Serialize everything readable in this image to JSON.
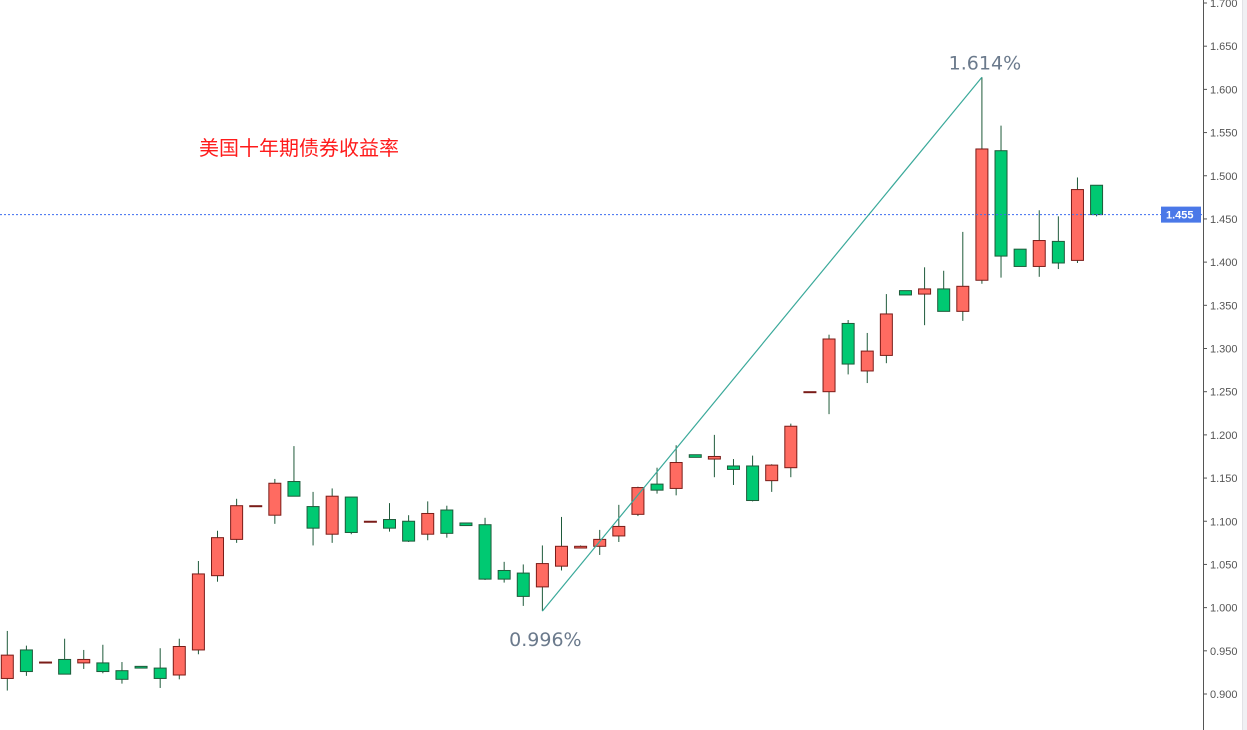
{
  "chart_data": {
    "type": "candlestick",
    "title": "美国十年期债券收益率",
    "title_color": "#ff1a1a",
    "ylim": [
      0.9,
      1.7
    ],
    "y_ticks": [
      "0.900",
      "0.950",
      "1.000",
      "1.050",
      "1.100",
      "1.150",
      "1.200",
      "1.250",
      "1.300",
      "1.350",
      "1.400",
      "1.450",
      "1.500",
      "1.550",
      "1.600",
      "1.650",
      "1.700"
    ],
    "y_axis_side": "right",
    "grid": false,
    "colors": {
      "up": "#ff6b61",
      "up_border": "#7a1c18",
      "down": "#00c972",
      "down_border": "#1e5a3a",
      "wick": "#1e5a3a",
      "trendline": "#3aa99a",
      "price_line": "#3d6cf0",
      "annotation": "#6b7a8c"
    },
    "current_price": {
      "label": "1.455",
      "value": 1.455
    },
    "trendline": {
      "from": {
        "index": 28,
        "value": 0.996
      },
      "to": {
        "index": 51,
        "value": 1.614
      }
    },
    "annotations": [
      {
        "text": "0.996%",
        "index": 28,
        "value": 0.996
      },
      {
        "text": "1.614%",
        "index": 51,
        "value": 1.614
      }
    ],
    "ohlc": [
      [
        0.918,
        0.973,
        0.904,
        0.945
      ],
      [
        0.951,
        0.956,
        0.921,
        0.926
      ],
      [
        0.937,
        0.937,
        0.937,
        0.937
      ],
      [
        0.94,
        0.964,
        0.923,
        0.923
      ],
      [
        0.936,
        0.951,
        0.929,
        0.94
      ],
      [
        0.936,
        0.957,
        0.924,
        0.926
      ],
      [
        0.927,
        0.937,
        0.912,
        0.917
      ],
      [
        0.932,
        0.932,
        0.93,
        0.93
      ],
      [
        0.93,
        0.953,
        0.907,
        0.918
      ],
      [
        0.922,
        0.964,
        0.917,
        0.955
      ],
      [
        0.951,
        1.054,
        0.946,
        1.039
      ],
      [
        1.037,
        1.089,
        1.03,
        1.081
      ],
      [
        1.079,
        1.126,
        1.075,
        1.118
      ],
      [
        1.118,
        1.118,
        1.118,
        1.118
      ],
      [
        1.107,
        1.149,
        1.097,
        1.144
      ],
      [
        1.146,
        1.187,
        1.129,
        1.129
      ],
      [
        1.117,
        1.134,
        1.072,
        1.092
      ],
      [
        1.085,
        1.138,
        1.075,
        1.129
      ],
      [
        1.128,
        1.128,
        1.085,
        1.087
      ],
      [
        1.1,
        1.1,
        1.1,
        1.1
      ],
      [
        1.102,
        1.121,
        1.088,
        1.092
      ],
      [
        1.1,
        1.107,
        1.076,
        1.077
      ],
      [
        1.085,
        1.123,
        1.078,
        1.109
      ],
      [
        1.113,
        1.118,
        1.081,
        1.086
      ],
      [
        1.098,
        1.098,
        1.095,
        1.095
      ],
      [
        1.096,
        1.104,
        1.032,
        1.033
      ],
      [
        1.043,
        1.053,
        1.029,
        1.033
      ],
      [
        1.04,
        1.05,
        1.002,
        1.013
      ],
      [
        1.024,
        1.072,
        0.996,
        1.051
      ],
      [
        1.048,
        1.105,
        1.043,
        1.071
      ],
      [
        1.069,
        1.072,
        1.069,
        1.071
      ],
      [
        1.071,
        1.09,
        1.061,
        1.079
      ],
      [
        1.083,
        1.119,
        1.076,
        1.094
      ],
      [
        1.108,
        1.14,
        1.106,
        1.139
      ],
      [
        1.143,
        1.162,
        1.132,
        1.136
      ],
      [
        1.138,
        1.188,
        1.13,
        1.168
      ],
      [
        1.177,
        1.177,
        1.174,
        1.174
      ],
      [
        1.172,
        1.2,
        1.151,
        1.175
      ],
      [
        1.164,
        1.172,
        1.142,
        1.16
      ],
      [
        1.164,
        1.176,
        1.123,
        1.124
      ],
      [
        1.147,
        1.166,
        1.134,
        1.165
      ],
      [
        1.162,
        1.213,
        1.151,
        1.21
      ],
      [
        1.25,
        1.25,
        1.25,
        1.25
      ],
      [
        1.25,
        1.316,
        1.224,
        1.311
      ],
      [
        1.329,
        1.333,
        1.27,
        1.282
      ],
      [
        1.274,
        1.318,
        1.26,
        1.297
      ],
      [
        1.292,
        1.363,
        1.283,
        1.34
      ],
      [
        1.367,
        1.367,
        1.362,
        1.362
      ],
      [
        1.363,
        1.394,
        1.327,
        1.369
      ],
      [
        1.369,
        1.39,
        1.343,
        1.343
      ],
      [
        1.343,
        1.435,
        1.332,
        1.372
      ],
      [
        1.379,
        1.614,
        1.375,
        1.531
      ],
      [
        1.529,
        1.558,
        1.382,
        1.407
      ],
      [
        1.415,
        1.415,
        1.395,
        1.395
      ],
      [
        1.395,
        1.46,
        1.383,
        1.425
      ],
      [
        1.424,
        1.453,
        1.392,
        1.399
      ],
      [
        1.402,
        1.498,
        1.399,
        1.484
      ],
      [
        1.489,
        1.489,
        1.453,
        1.455
      ]
    ]
  }
}
